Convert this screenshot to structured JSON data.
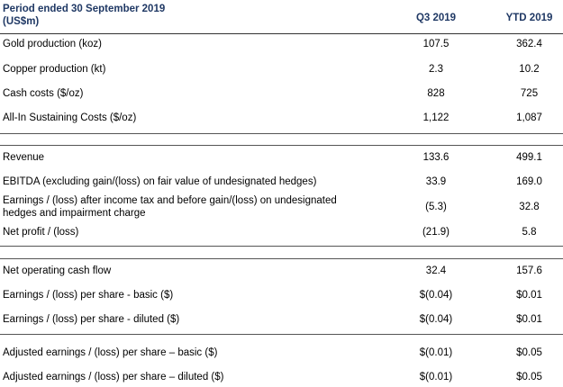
{
  "header": {
    "period_line1": "Period ended 30 September 2019",
    "period_line2": "(US$m)",
    "col1": "Q3 2019",
    "col2": "YTD 2019"
  },
  "rows": [
    {
      "label": "Gold production (koz)",
      "q3": "107.5",
      "ytd": "362.4"
    },
    {
      "label": "Copper production (kt)",
      "q3": "2.3",
      "ytd": "10.2"
    },
    {
      "label": "Cash costs ($/oz)",
      "q3": "828",
      "ytd": "725"
    },
    {
      "label": "All-In Sustaining Costs ($/oz)",
      "q3": "1,122",
      "ytd": "1,087"
    },
    {
      "label": "Revenue",
      "q3": "133.6",
      "ytd": "499.1"
    },
    {
      "label": "EBITDA (excluding gain/(loss) on fair value of undesignated hedges)",
      "q3": "33.9",
      "ytd": "169.0"
    },
    {
      "label": "Earnings / (loss) after income tax and before gain/(loss) on undesignated",
      "label2": "hedges and impairment charge",
      "q3": "(5.3)",
      "ytd": "32.8"
    },
    {
      "label": "Net profit / (loss)",
      "q3": "(21.9)",
      "ytd": "5.8"
    },
    {
      "label": "Net operating cash flow",
      "q3": "32.4",
      "ytd": "157.6"
    },
    {
      "label": "Earnings / (loss) per share - basic ($)",
      "q3": "$(0.04)",
      "ytd": "$0.01"
    },
    {
      "label": "Earnings / (loss) per share - diluted ($)",
      "q3": "$(0.04)",
      "ytd": "$0.01"
    },
    {
      "label": "Adjusted earnings / (loss) per share – basic ($)",
      "q3": "$(0.01)",
      "ytd": "$0.05"
    },
    {
      "label": "Adjusted earnings / (loss) per share – diluted ($)",
      "q3": "$(0.01)",
      "ytd": "$0.05"
    }
  ]
}
